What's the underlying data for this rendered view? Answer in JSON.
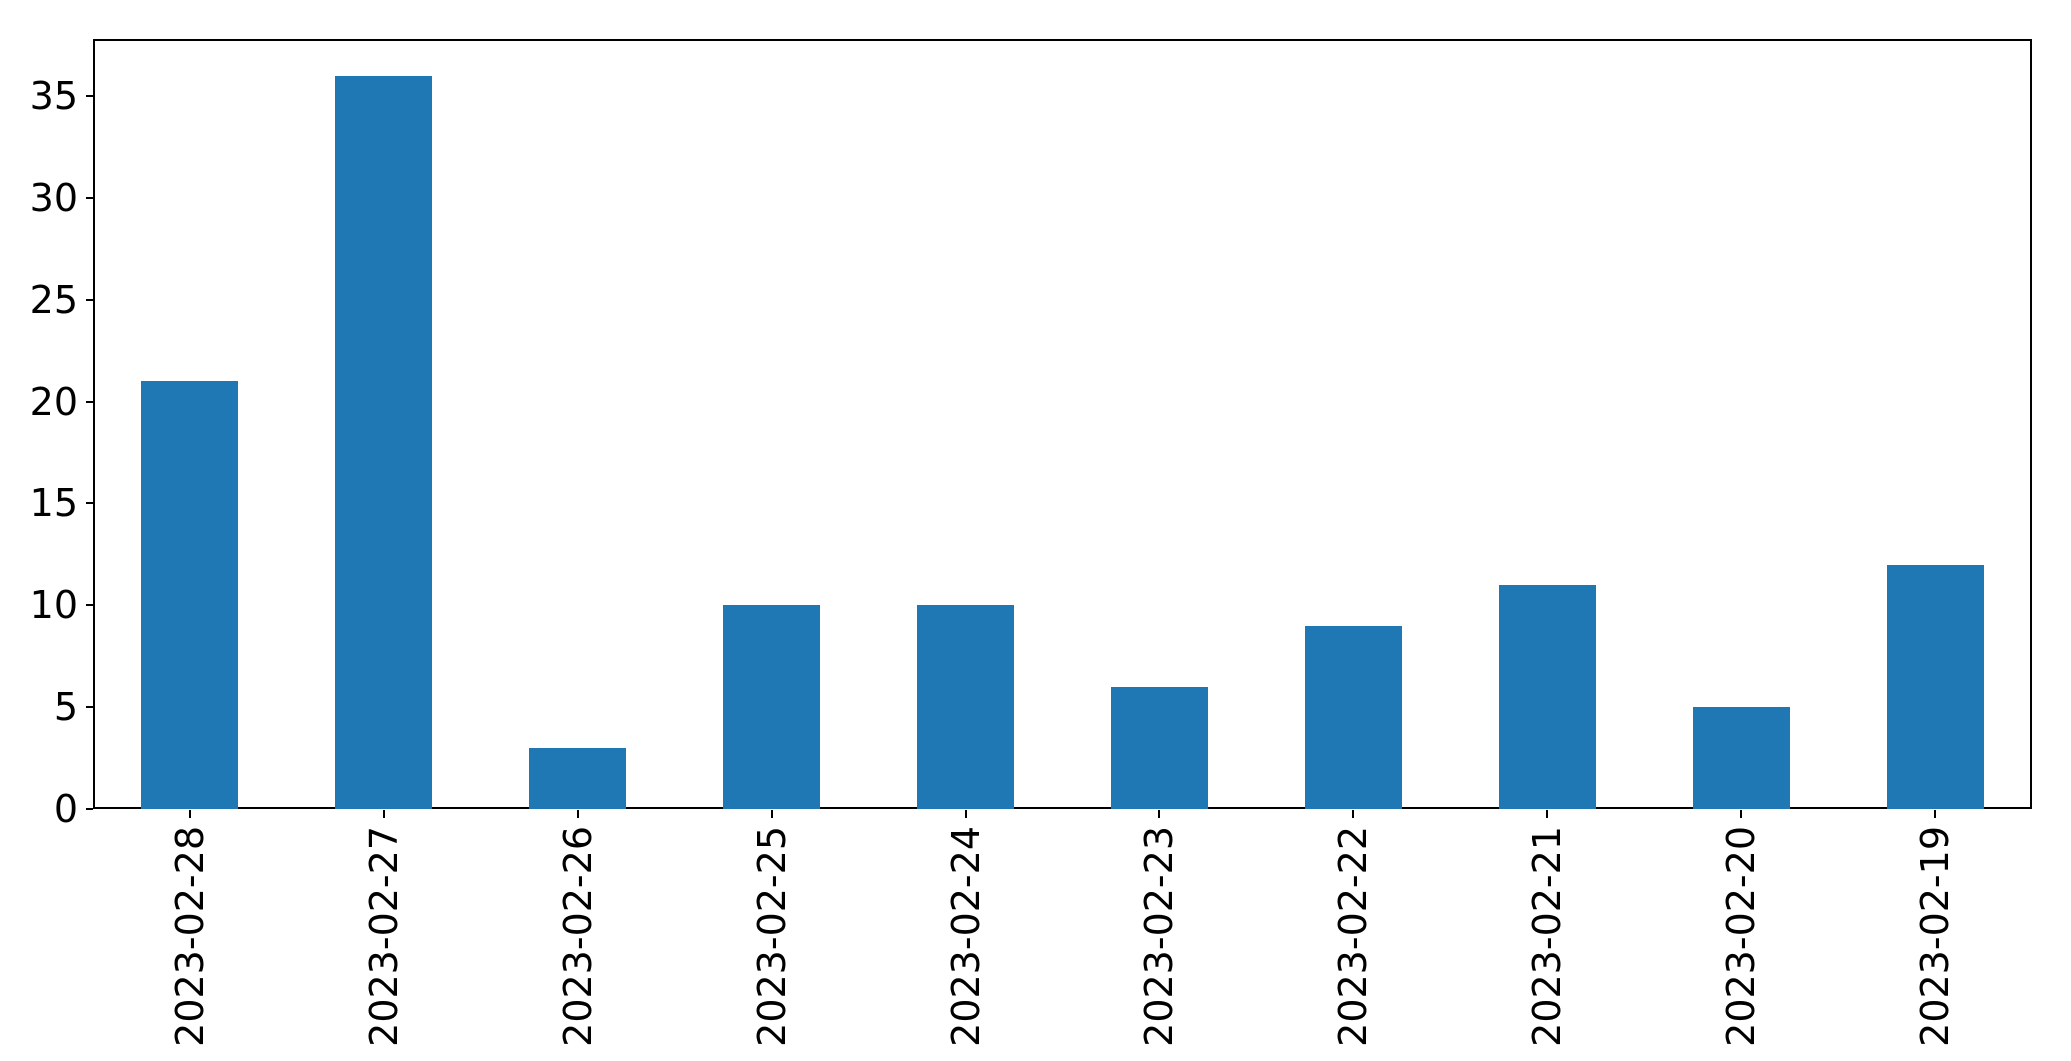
{
  "figure": {
    "background": "#ffffff",
    "frame_color": "#000000",
    "text_color": "#000000"
  },
  "chart_data": {
    "type": "bar",
    "title": "",
    "xlabel": "",
    "ylabel": "",
    "categories": [
      "2023-02-28",
      "2023-02-27",
      "2023-02-26",
      "2023-02-25",
      "2023-02-24",
      "2023-02-23",
      "2023-02-22",
      "2023-02-21",
      "2023-02-20",
      "2023-02-19"
    ],
    "values": [
      21,
      36,
      3,
      10,
      10,
      6,
      9,
      11,
      5,
      12
    ],
    "yticks": [
      0,
      5,
      10,
      15,
      20,
      25,
      30,
      35
    ],
    "ylim": [
      0,
      37.8
    ],
    "bar_color": "#1f77b4",
    "bar_width_fraction": 0.5,
    "x_tick_label_rotation": 90,
    "grid": false,
    "legend": false
  }
}
